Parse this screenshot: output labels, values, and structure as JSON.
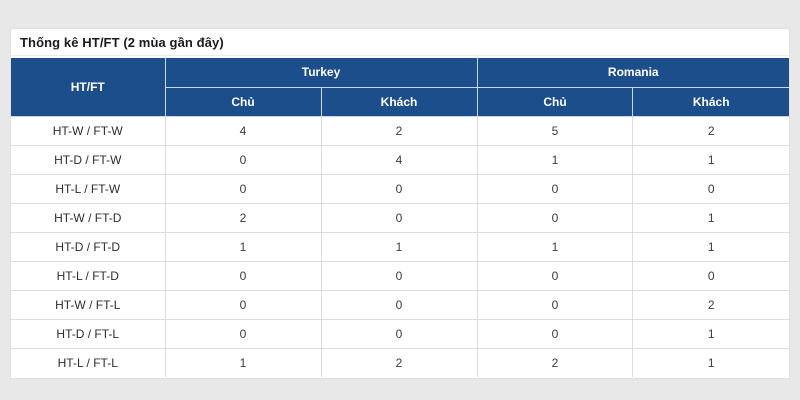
{
  "page": {
    "title": "Thống kê HT/FT (2 mùa gần đây)"
  },
  "table": {
    "corner_header": "HT/FT",
    "groups": [
      {
        "label": "Turkey",
        "sub": [
          "Chủ",
          "Khách"
        ]
      },
      {
        "label": "Romania",
        "sub": [
          "Chủ",
          "Khách"
        ]
      }
    ],
    "rows": [
      {
        "label": "HT-W / FT-W",
        "values": [
          "4",
          "2",
          "5",
          "2"
        ]
      },
      {
        "label": "HT-D / FT-W",
        "values": [
          "0",
          "4",
          "1",
          "1"
        ]
      },
      {
        "label": "HT-L / FT-W",
        "values": [
          "0",
          "0",
          "0",
          "0"
        ]
      },
      {
        "label": "HT-W / FT-D",
        "values": [
          "2",
          "0",
          "0",
          "1"
        ]
      },
      {
        "label": "HT-D / FT-D",
        "values": [
          "1",
          "1",
          "1",
          "1"
        ]
      },
      {
        "label": "HT-L / FT-D",
        "values": [
          "0",
          "0",
          "0",
          "0"
        ]
      },
      {
        "label": "HT-W / FT-L",
        "values": [
          "0",
          "0",
          "0",
          "2"
        ]
      },
      {
        "label": "HT-D / FT-L",
        "values": [
          "0",
          "0",
          "0",
          "1"
        ]
      },
      {
        "label": "HT-L / FT-L",
        "values": [
          "1",
          "2",
          "2",
          "1"
        ]
      }
    ]
  },
  "colors": {
    "page_bg": "#e8e8e8",
    "card_bg": "#ffffff",
    "header_bg": "#1d4e8c",
    "header_text": "#ffffff",
    "header_divider": "#c9d9ea",
    "row_border": "#dcdcdc",
    "body_text": "#3c3c3c"
  }
}
